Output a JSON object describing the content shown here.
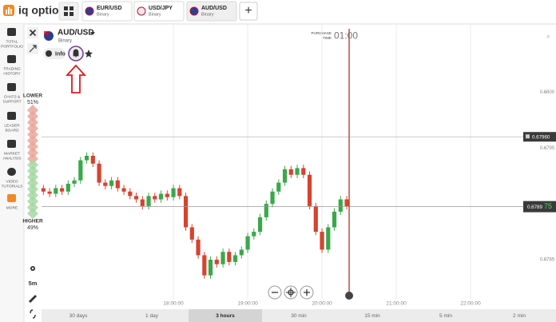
{
  "header": {
    "logo": "iq option",
    "tabs": [
      {
        "pair": "EUR/USD",
        "kind": "Binary"
      },
      {
        "pair": "USD/JPY",
        "kind": "Binary"
      },
      {
        "pair": "AUD/USD",
        "kind": "Binary"
      }
    ],
    "add": "+"
  },
  "sidebar": [
    [
      "TOTAL",
      "PORTFOLIO"
    ],
    [
      "TRADING",
      "HISTORY"
    ],
    [
      "CHATS &",
      "SUPPORT"
    ],
    [
      "LEADER",
      "BOARD"
    ],
    [
      "MARKET",
      "ANALYSIS"
    ],
    [
      "VIDEO",
      "TUTORIALS"
    ],
    [
      "MORE"
    ]
  ],
  "asset": {
    "name": "AUD/USD",
    "kind": "Binary",
    "info": "Info"
  },
  "sentiment": {
    "lower_label": "LOWER",
    "lower": "51%",
    "higher_label": "HIGHER",
    "higher": "49%"
  },
  "purchase": {
    "label": [
      "PURCHASE",
      "TIME"
    ],
    "timer": "01:00"
  },
  "tools": {
    "interval": "5m"
  },
  "periods": [
    "30 days",
    "1 day",
    "3 hours",
    "30 min",
    "15 min",
    "5 min",
    "2 min"
  ],
  "active_period": 2,
  "chart_data": {
    "type": "candlestick",
    "x": [
      "16:15:00",
      "16:20:00",
      "16:25:00",
      "16:30:00",
      "16:35:00",
      "16:40:00",
      "16:45:00",
      "16:50:00",
      "16:55:00",
      "17:00:00",
      "17:05:00",
      "17:10:00",
      "17:15:00",
      "17:20:00",
      "17:25:00",
      "17:30:00",
      "17:35:00",
      "17:40:00",
      "17:45:00",
      "17:50:00",
      "17:55:00",
      "18:00:00",
      "18:05:00",
      "18:10:00",
      "18:15:00",
      "18:20:00",
      "18:25:00",
      "18:30:00",
      "18:35:00",
      "18:40:00",
      "18:45:00",
      "18:50:00",
      "18:55:00",
      "19:00:00",
      "19:05:00",
      "19:10:00",
      "19:15:00",
      "19:20:00",
      "19:25:00",
      "19:30:00",
      "19:35:00",
      "19:40:00",
      "19:45:00",
      "19:50:00",
      "19:55:00",
      "20:00:00",
      "20:05:00",
      "20:10:00",
      "20:15:00",
      "20:20:00"
    ],
    "open": [
      0.67914,
      0.67911,
      0.67909,
      0.67914,
      0.67911,
      0.67918,
      0.67921,
      0.67939,
      0.67943,
      0.67936,
      0.67919,
      0.67916,
      0.67921,
      0.67914,
      0.67911,
      0.67907,
      0.67904,
      0.67898,
      0.67907,
      0.67904,
      0.67909,
      0.67906,
      0.67914,
      0.67907,
      0.67879,
      0.67868,
      0.67854,
      0.67836,
      0.6785,
      0.67846,
      0.67857,
      0.67848,
      0.67854,
      0.67859,
      0.67871,
      0.67875,
      0.67888,
      0.679,
      0.67911,
      0.67919,
      0.67931,
      0.67926,
      0.67932,
      0.67926,
      0.67898,
      0.67875,
      0.67859,
      0.67879,
      0.67893,
      0.67904
    ],
    "high": [
      0.67917,
      0.67914,
      0.67917,
      0.67917,
      0.67921,
      0.67924,
      0.67942,
      0.67946,
      0.67946,
      0.67939,
      0.67922,
      0.67924,
      0.67924,
      0.67917,
      0.67914,
      0.6791,
      0.67907,
      0.6791,
      0.6791,
      0.67912,
      0.67912,
      0.67917,
      0.67917,
      0.6791,
      0.67882,
      0.67871,
      0.67857,
      0.67853,
      0.67853,
      0.6786,
      0.6786,
      0.67857,
      0.67862,
      0.67874,
      0.67878,
      0.67891,
      0.67903,
      0.67914,
      0.67922,
      0.67934,
      0.67934,
      0.67935,
      0.67935,
      0.67929,
      0.67901,
      0.67878,
      0.67882,
      0.67896,
      0.67907,
      0.67907
    ],
    "low": [
      0.67908,
      0.67906,
      0.67906,
      0.67908,
      0.67908,
      0.67915,
      0.67918,
      0.67936,
      0.67933,
      0.67916,
      0.67913,
      0.67913,
      0.67911,
      0.67908,
      0.67904,
      0.67901,
      0.67895,
      0.67895,
      0.67901,
      0.67901,
      0.67903,
      0.67903,
      0.67904,
      0.67876,
      0.67865,
      0.67851,
      0.67833,
      0.67833,
      0.67843,
      0.67843,
      0.67845,
      0.67845,
      0.67851,
      0.67856,
      0.67868,
      0.67872,
      0.67885,
      0.67897,
      0.67908,
      0.67916,
      0.67923,
      0.67923,
      0.67923,
      0.67895,
      0.67872,
      0.67856,
      0.67856,
      0.67876,
      0.6789,
      0.67895
    ],
    "close": [
      0.67911,
      0.67909,
      0.67914,
      0.67911,
      0.67918,
      0.67921,
      0.67939,
      0.67943,
      0.67936,
      0.67919,
      0.67916,
      0.67921,
      0.67914,
      0.67911,
      0.67907,
      0.67904,
      0.67898,
      0.67907,
      0.67904,
      0.67909,
      0.67906,
      0.67914,
      0.67907,
      0.67879,
      0.67868,
      0.67854,
      0.67836,
      0.6785,
      0.67846,
      0.67857,
      0.67848,
      0.67854,
      0.67859,
      0.67871,
      0.67875,
      0.67888,
      0.679,
      0.67911,
      0.67919,
      0.67931,
      0.67926,
      0.67932,
      0.67926,
      0.67898,
      0.67875,
      0.67859,
      0.67879,
      0.67893,
      0.67904,
      0.67898
    ],
    "up_color": "#3aa84a",
    "down_color": "#d6432f",
    "xlim": [
      "16:13:30",
      "23:09:00"
    ],
    "xticks": [
      "18:00:00",
      "19:00:00",
      "20:00:00",
      "21:00:00",
      "22:00:00"
    ],
    "ylim": [
      0.67825,
      0.68061
    ],
    "yticks": [
      {
        "value": 0.68,
        "label": "0.6800"
      },
      {
        "value": 0.6795,
        "label": "0.6795"
      },
      {
        "value": 0.6785,
        "label": "0.6785"
      }
    ],
    "levels": [
      {
        "value": 0.6796,
        "label": "0.67960"
      }
    ],
    "current": {
      "value": 0.678975,
      "label": "0.6789",
      "label_tail": "75"
    },
    "grid": true
  }
}
